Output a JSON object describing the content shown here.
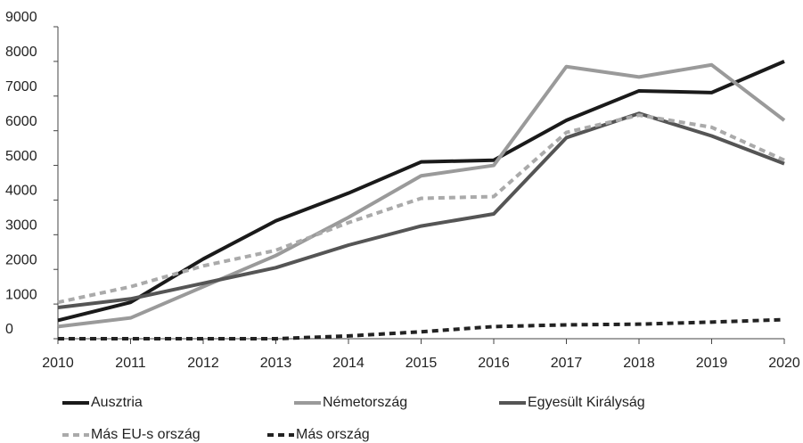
{
  "chart_data": {
    "type": "line",
    "x": [
      2010,
      2011,
      2012,
      2013,
      2014,
      2015,
      2016,
      2017,
      2018,
      2019,
      2020
    ],
    "xlim": [
      2010,
      2020
    ],
    "xticks": [
      2010,
      2011,
      2012,
      2013,
      2014,
      2015,
      2016,
      2017,
      2018,
      2019,
      2020
    ],
    "ylim": [
      0,
      9000
    ],
    "yticks": [
      0,
      1000,
      2000,
      3000,
      4000,
      5000,
      6000,
      7000,
      8000,
      9000
    ],
    "grid": false,
    "legend": "bottom",
    "series": [
      {
        "name": "Ausztria",
        "color": "#1a1a1a",
        "dashed": false,
        "values": [
          530,
          1050,
          2300,
          3400,
          4200,
          5100,
          5150,
          6300,
          7150,
          7100,
          8000
        ]
      },
      {
        "name": "Németország",
        "color": "#9a9a9a",
        "dashed": false,
        "values": [
          350,
          600,
          1500,
          2400,
          3500,
          4700,
          5000,
          7850,
          7550,
          7900,
          6300
        ]
      },
      {
        "name": "Egyesült Királyság",
        "color": "#555555",
        "dashed": false,
        "values": [
          900,
          1150,
          1600,
          2050,
          2700,
          3250,
          3600,
          5800,
          6500,
          5850,
          5050
        ]
      },
      {
        "name": "Más EU-s ország",
        "color": "#aaaaaa",
        "dashed": true,
        "values": [
          1050,
          1500,
          2100,
          2550,
          3350,
          4050,
          4100,
          5950,
          6450,
          6100,
          5150
        ]
      },
      {
        "name": "Más ország",
        "color": "#222222",
        "dashed": true,
        "values": [
          0,
          0,
          0,
          0,
          80,
          200,
          350,
          400,
          420,
          480,
          550
        ]
      }
    ]
  }
}
